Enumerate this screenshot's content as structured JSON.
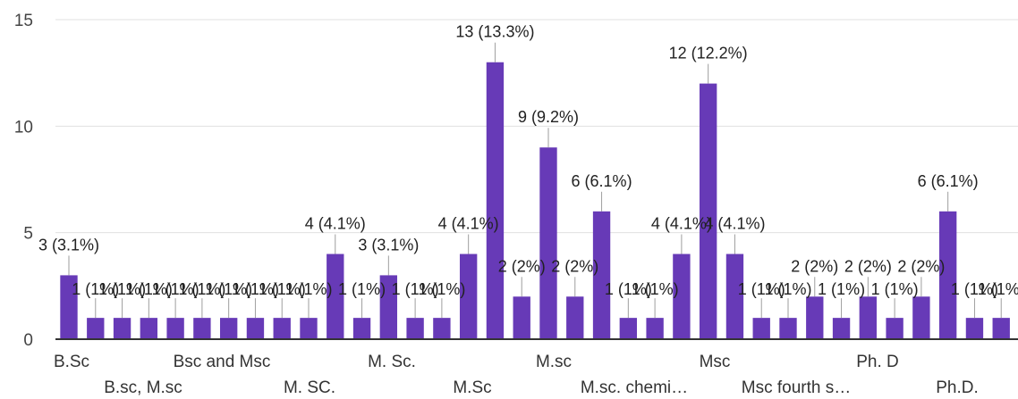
{
  "chart_data": {
    "type": "bar",
    "title": "",
    "xlabel": "",
    "ylabel": "",
    "ylim": [
      0,
      15
    ],
    "yticks": [
      0,
      5,
      10,
      15
    ],
    "grid": true,
    "legend": "none",
    "bar_color": "#673ab7",
    "label_color": "#212121",
    "x_tick_labels_row1": [
      "B.Sc",
      "Bsc and Msc",
      "M. Sc.",
      "M.sc",
      "Msc",
      "Ph. D"
    ],
    "x_tick_labels_row2": [
      "B.sc, M.sc",
      "M. SC.",
      "M.Sc",
      "M.sc. chemi…",
      "Msc fourth s…",
      "Ph.D."
    ],
    "values": [
      3,
      1,
      1,
      1,
      1,
      1,
      1,
      1,
      1,
      1,
      4,
      1,
      3,
      1,
      1,
      4,
      13,
      2,
      9,
      2,
      6,
      1,
      1,
      4,
      12,
      4,
      1,
      1,
      2,
      1,
      2,
      1,
      2,
      6,
      1,
      1
    ],
    "data_labels": [
      "3 (3.1%)",
      "1 (1%)",
      "1 (1%)",
      "1 (1%)",
      "1 (1%)",
      "1 (1%)",
      "1 (1%)",
      "1 (1%)",
      "1 (1%)",
      "1 (1%)",
      "4 (4.1%)",
      "1 (1%)",
      "3 (3.1%)",
      "1 (1%)",
      "1 (1%)",
      "4 (4.1%)",
      "13 (13.3%)",
      "2 (2%)",
      "9 (9.2%)",
      "2 (2%)",
      "6 (6.1%)",
      "1 (1%)",
      "1 (1%)",
      "4 (4.1%)",
      "12 (12.2%)",
      "4 (4.1%)",
      "1 (1%)",
      "1 (1%)",
      "2 (2%)",
      "1 (1%)",
      "2 (2%)",
      "1 (1%)",
      "2 (2%)",
      "6 (6.1%)",
      "1 (1%)",
      "1 (1%)"
    ]
  }
}
